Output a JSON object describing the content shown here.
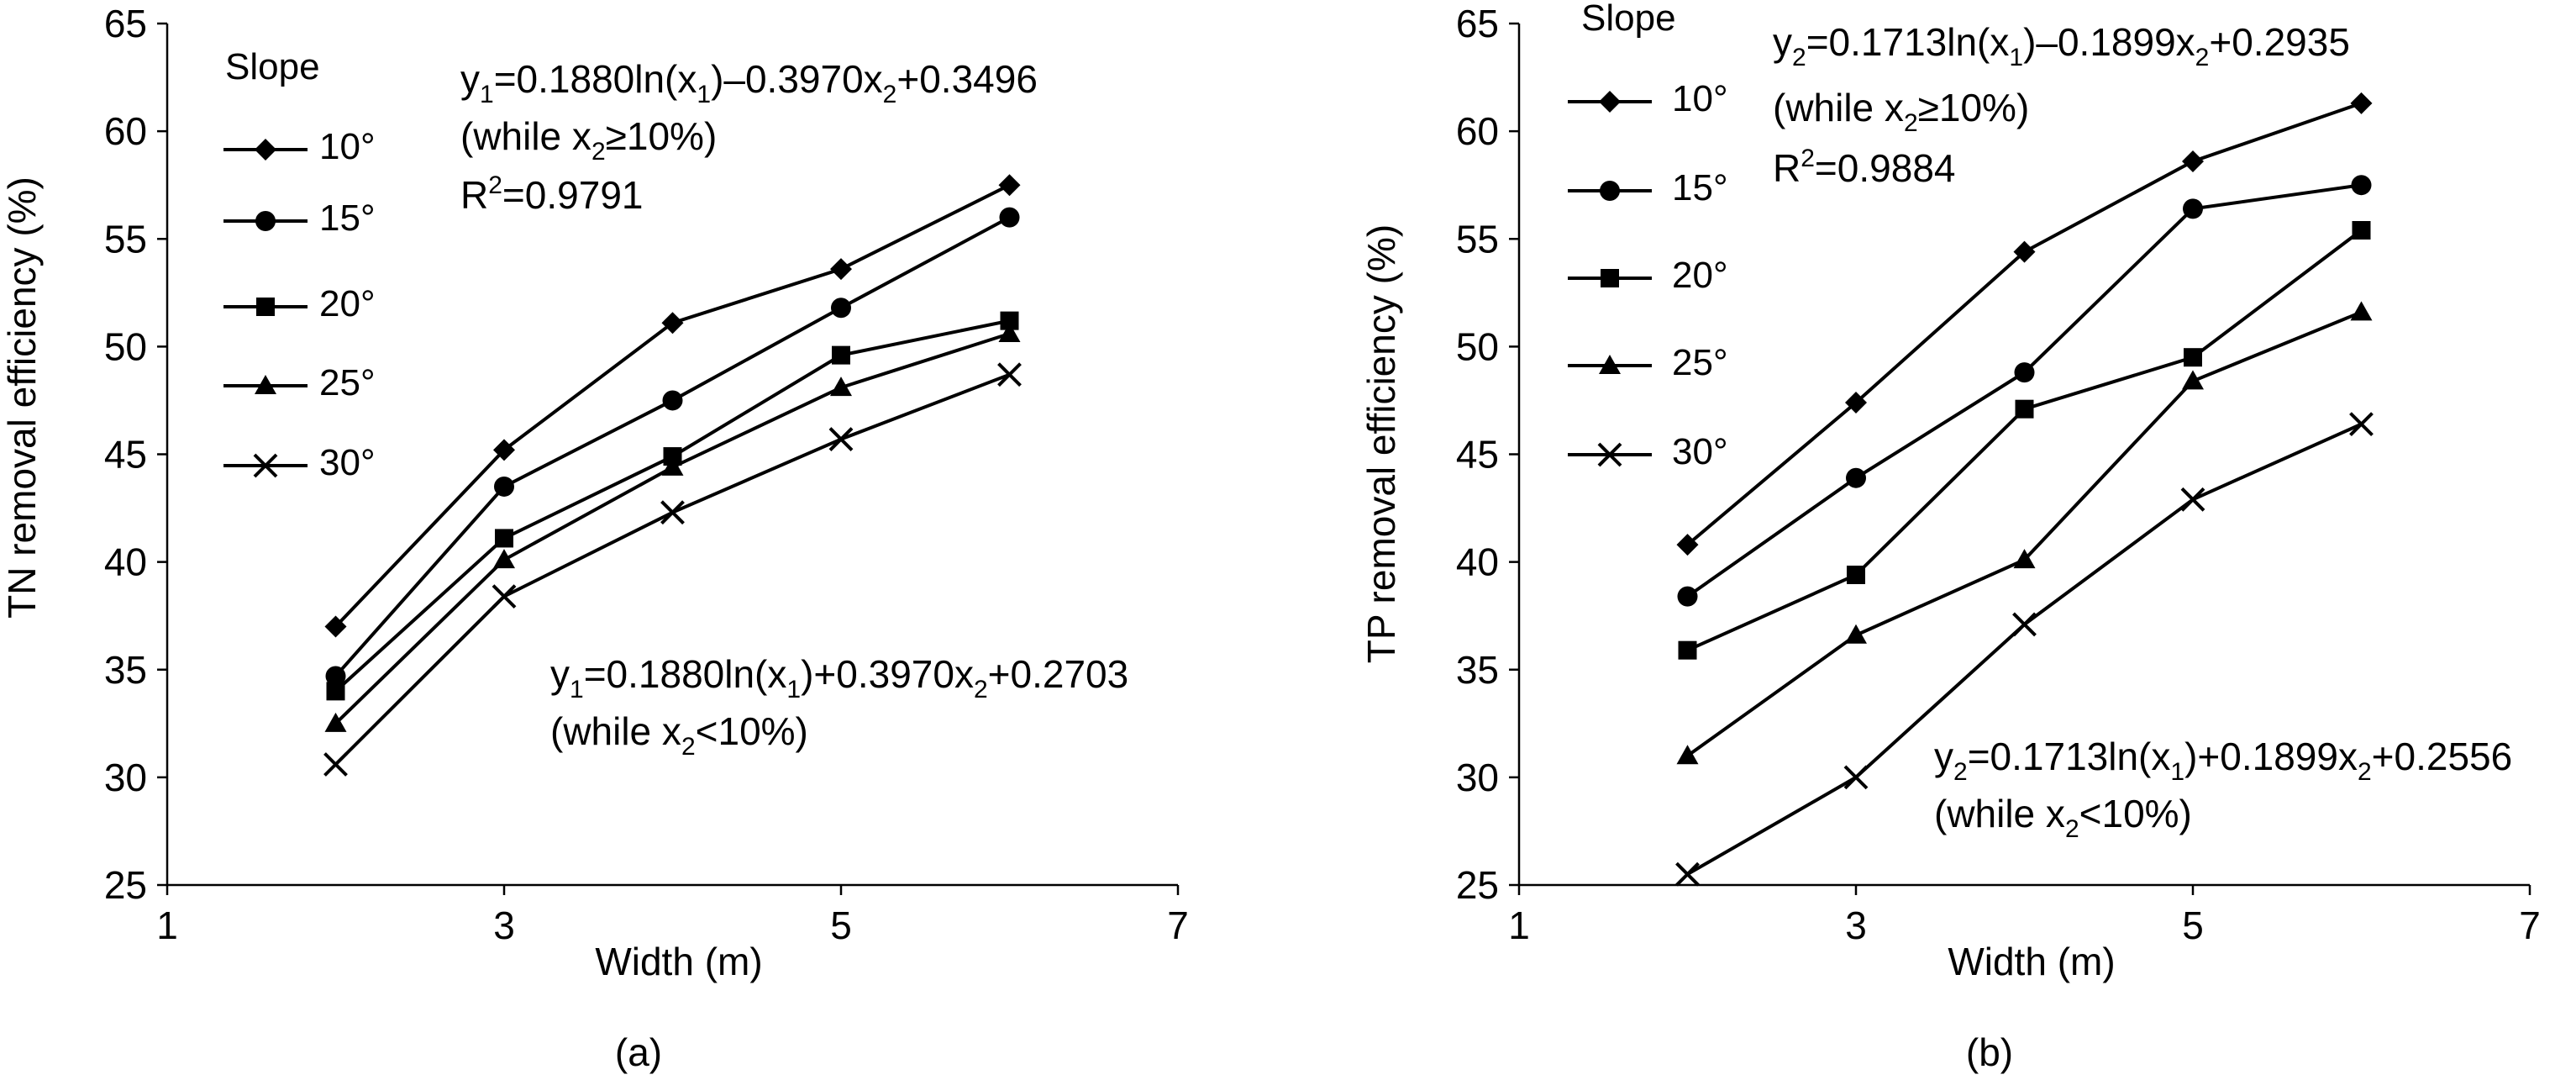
{
  "colors": {
    "line": "#000000",
    "background": "#ffffff"
  },
  "chart_data": [
    {
      "type": "line",
      "panel_label": "(a)",
      "xlabel": "Width (m)",
      "ylabel": "TN removal efficiency (%)",
      "xlim": [
        1,
        7
      ],
      "ylim": [
        25,
        65
      ],
      "xticks": [
        "1",
        "3",
        "5",
        "7"
      ],
      "yticks": [
        "25",
        "30",
        "35",
        "40",
        "45",
        "50",
        "55",
        "60",
        "65"
      ],
      "x": [
        2,
        3,
        4,
        5,
        6
      ],
      "legend_title": "Slope",
      "series": [
        {
          "name": "10°",
          "marker": "diamond",
          "values": [
            37.0,
            45.2,
            51.1,
            53.6,
            57.5
          ]
        },
        {
          "name": "15°",
          "marker": "circle",
          "values": [
            34.7,
            43.5,
            47.5,
            51.8,
            56.0
          ]
        },
        {
          "name": "20°",
          "marker": "square",
          "values": [
            34.0,
            41.1,
            44.9,
            49.6,
            51.2
          ]
        },
        {
          "name": "25°",
          "marker": "triangle",
          "values": [
            32.5,
            40.1,
            44.4,
            48.1,
            50.6
          ]
        },
        {
          "name": "30°",
          "marker": "x",
          "values": [
            30.6,
            38.4,
            42.3,
            45.7,
            48.7
          ]
        }
      ],
      "equations": {
        "upper": {
          "var": "y",
          "var_sub": "1",
          "part1": "=0.1880ln(x",
          "sub1": "1",
          "part2": ")–0.3970x",
          "sub2": "2",
          "part3": "+0.3496",
          "cond_pre": "(while x",
          "cond_sub": "2",
          "cond_post": "≥10%)",
          "r2_pre": "R",
          "r2_sup": "2",
          "r2_post": "=0.9791"
        },
        "lower": {
          "var": "y",
          "var_sub": "1",
          "part1": "=0.1880ln(x",
          "sub1": "1",
          "part2": ")+0.3970x",
          "sub2": "2",
          "part3": "+0.2703",
          "cond_pre": "(while x",
          "cond_sub": "2",
          "cond_post": "<10%)"
        }
      }
    },
    {
      "type": "line",
      "panel_label": "(b)",
      "xlabel": "Width (m)",
      "ylabel": "TP removal efficiency (%)",
      "xlim": [
        1,
        7
      ],
      "ylim": [
        25,
        65
      ],
      "xticks": [
        "1",
        "3",
        "5",
        "7"
      ],
      "yticks": [
        "25",
        "30",
        "35",
        "40",
        "45",
        "50",
        "55",
        "60",
        "65"
      ],
      "x": [
        2,
        3,
        4,
        5,
        6
      ],
      "legend_title": "Slope",
      "series": [
        {
          "name": "10°",
          "marker": "diamond",
          "values": [
            40.8,
            47.4,
            54.4,
            58.6,
            61.3
          ]
        },
        {
          "name": "15°",
          "marker": "circle",
          "values": [
            38.4,
            43.9,
            48.8,
            56.4,
            57.5
          ]
        },
        {
          "name": "20°",
          "marker": "square",
          "values": [
            35.9,
            39.4,
            47.1,
            49.5,
            55.4
          ]
        },
        {
          "name": "25°",
          "marker": "triangle",
          "values": [
            31.0,
            36.6,
            40.1,
            48.4,
            51.6
          ]
        },
        {
          "name": "30°",
          "marker": "x",
          "values": [
            25.5,
            30.0,
            37.1,
            42.9,
            46.4
          ]
        }
      ],
      "equations": {
        "upper": {
          "var": "y",
          "var_sub": "2",
          "part1": "=0.1713ln(x",
          "sub1": "1",
          "part2": ")–0.1899x",
          "sub2": "2",
          "part3": "+0.2935",
          "cond_pre": "(while x",
          "cond_sub": "2",
          "cond_post": "≥10%)",
          "r2_pre": "R",
          "r2_sup": "2",
          "r2_post": "=0.9884"
        },
        "lower": {
          "var": "y",
          "var_sub": "2",
          "part1": "=0.1713ln(x",
          "sub1": "1",
          "part2": ")+0.1899x",
          "sub2": "2",
          "part3": "+0.2556",
          "cond_pre": "(while x",
          "cond_sub": "2",
          "cond_post": "<10%)"
        }
      }
    }
  ]
}
